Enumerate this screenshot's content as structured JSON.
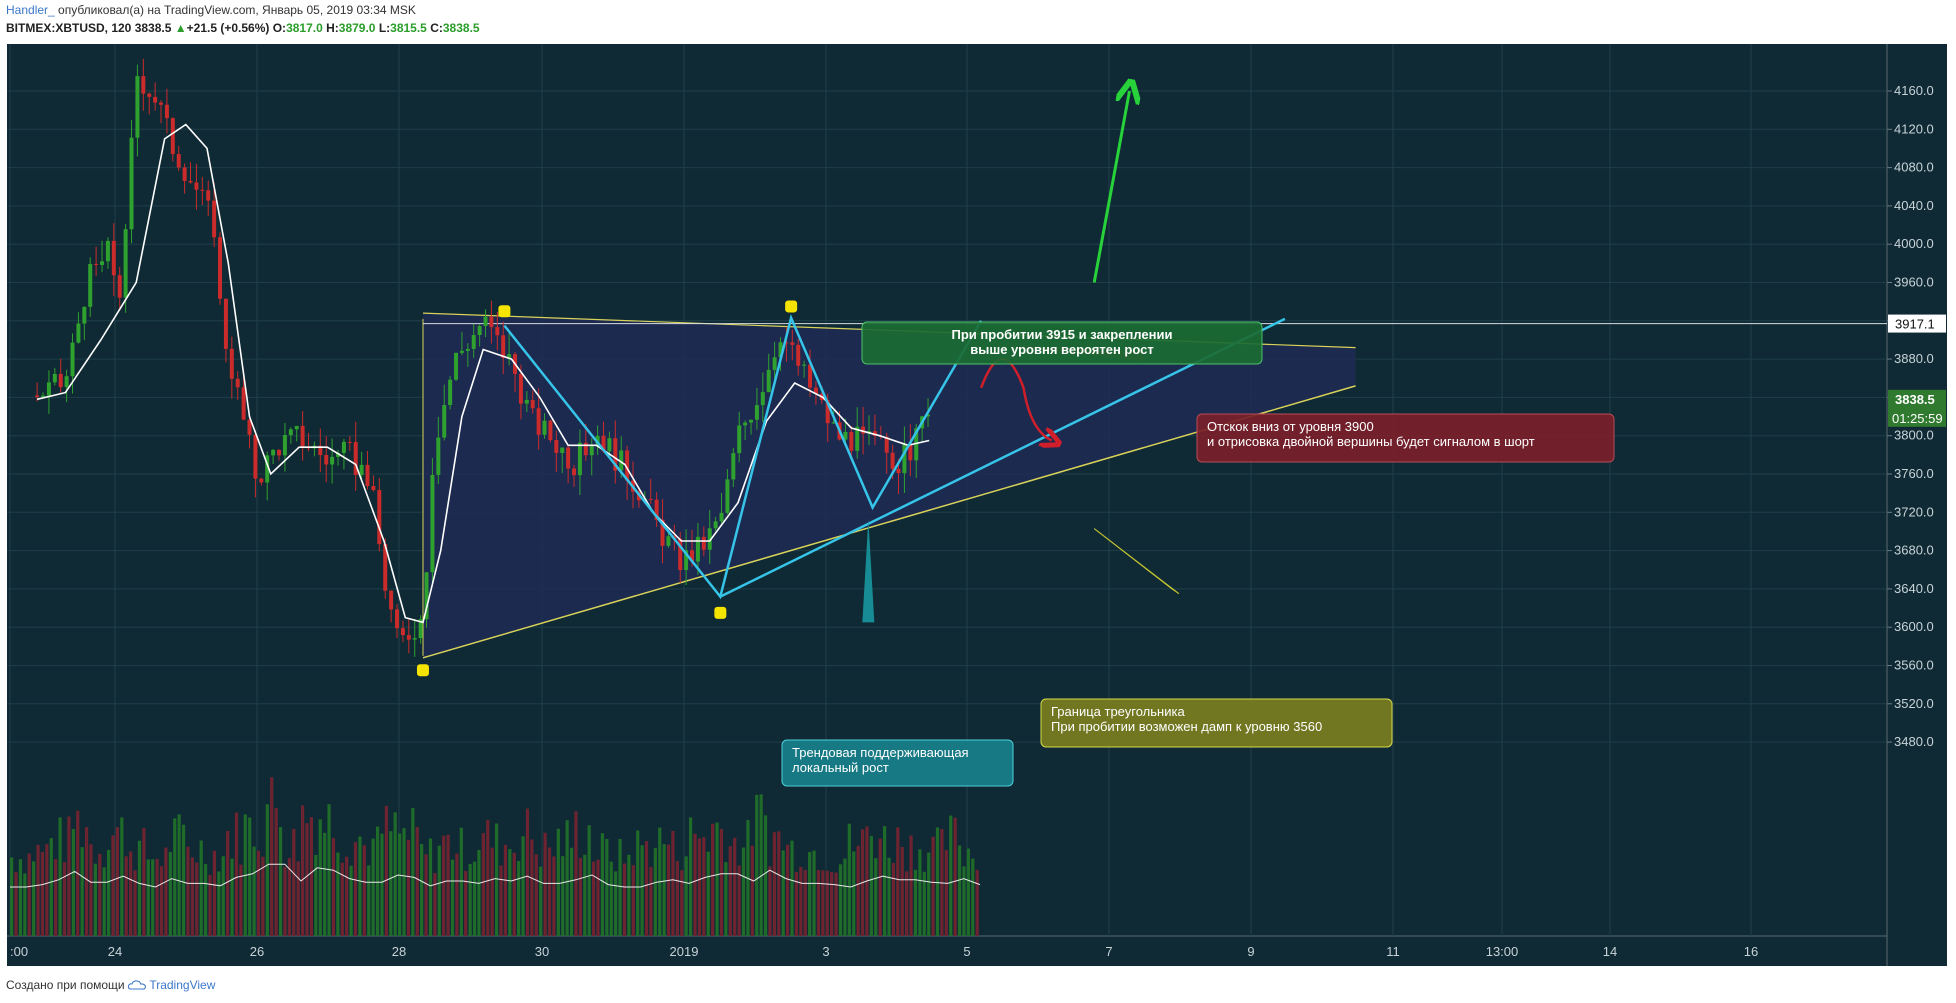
{
  "header": {
    "author": "Handler_",
    "published": " опубликовал(а) на TradingView.com, Январь 05, 2019 03:34 MSK",
    "symbol": "BITMEX:XBTUSD, 120",
    "last": "3838.5",
    "change": "+21.5 (+0.56%)",
    "o_label": "O:",
    "o_value": "3817.0",
    "h_label": "H:",
    "h_value": "3879.0",
    "l_label": "L:",
    "l_value": "3815.5",
    "c_label": "C:",
    "c_value": "3838.5"
  },
  "footer": {
    "text": "Создано при помощи",
    "brand": "TradingView"
  },
  "colors": {
    "background": "#0f2a34",
    "bull": "#2fa12f",
    "bear": "#cc2b2b",
    "ma": "#ffffff",
    "triangle_fill": "#1e2a55",
    "triangle_line": "#d9d25a",
    "cyan": "#36c4e8",
    "green_arrow": "#27d23a",
    "red_arrow": "#d01f2a",
    "price_badge": "#2f7a2f"
  },
  "chart_data": {
    "type": "candlestick",
    "symbol": "BITMEX:XBTUSD",
    "interval": "120",
    "y_ticks": [
      3480,
      3520,
      3560,
      3600,
      3640,
      3680,
      3720,
      3760,
      3800,
      3840,
      3880,
      3920,
      3960,
      4000,
      4040,
      4080,
      4120,
      4160
    ],
    "y_tick_labels": [
      "3480.0",
      "3520.0",
      "3560.0",
      "3600.0",
      "3640.0",
      "3680.0",
      "3720.0",
      "3760.0",
      "3800.0",
      "3840.0",
      "3880.0",
      "3920.0",
      "3960.0",
      "4000.0",
      "4040.0",
      "4080.0",
      "4120.0",
      "4160.0"
    ],
    "x_ticks": [
      ":00",
      "24",
      "26",
      "28",
      "30",
      "2019",
      "3",
      "5",
      "7",
      "9",
      "11",
      "13:00",
      "14",
      "16"
    ],
    "price_badges": {
      "level_line": "3917.1",
      "last_price": "3838.5",
      "countdown": "01:25:59"
    },
    "price_path": [
      [
        22.9,
        3842
      ],
      [
        23.3,
        3855
      ],
      [
        23.6,
        3960
      ],
      [
        23.9,
        3990
      ],
      [
        24.1,
        3945
      ],
      [
        24.3,
        4180
      ],
      [
        24.6,
        4150
      ],
      [
        24.8,
        4105
      ],
      [
        25.1,
        4065
      ],
      [
        25.4,
        4020
      ],
      [
        25.5,
        3920
      ],
      [
        25.8,
        3820
      ],
      [
        26.0,
        3755
      ],
      [
        26.3,
        3790
      ],
      [
        26.6,
        3800
      ],
      [
        27.0,
        3775
      ],
      [
        27.3,
        3780
      ],
      [
        27.6,
        3755
      ],
      [
        27.8,
        3650
      ],
      [
        28.0,
        3580
      ],
      [
        28.2,
        3600
      ],
      [
        28.35,
        3610
      ],
      [
        28.5,
        3790
      ],
      [
        28.8,
        3880
      ],
      [
        29.2,
        3920
      ],
      [
        29.6,
        3875
      ],
      [
        29.9,
        3815
      ],
      [
        30.2,
        3795
      ],
      [
        30.5,
        3770
      ],
      [
        30.8,
        3805
      ],
      [
        31.1,
        3775
      ],
      [
        31.4,
        3745
      ],
      [
        31.7,
        3700
      ],
      [
        32.0,
        3668
      ],
      [
        32.3,
        3685
      ],
      [
        32.55,
        3712
      ],
      [
        32.8,
        3800
      ],
      [
        33.1,
        3845
      ],
      [
        33.4,
        3910
      ],
      [
        33.6,
        3880
      ],
      [
        33.9,
        3840
      ],
      [
        34.2,
        3800
      ],
      [
        34.5,
        3795
      ],
      [
        34.8,
        3790
      ],
      [
        35.1,
        3770
      ],
      [
        35.35,
        3800
      ],
      [
        35.5,
        3838
      ]
    ],
    "moving_average": [
      [
        22.9,
        3838
      ],
      [
        23.3,
        3845
      ],
      [
        23.8,
        3900
      ],
      [
        24.3,
        3960
      ],
      [
        24.7,
        4110
      ],
      [
        25.0,
        4125
      ],
      [
        25.3,
        4100
      ],
      [
        25.6,
        3980
      ],
      [
        25.9,
        3820
      ],
      [
        26.2,
        3760
      ],
      [
        26.6,
        3788
      ],
      [
        27.0,
        3788
      ],
      [
        27.4,
        3770
      ],
      [
        27.8,
        3690
      ],
      [
        28.1,
        3610
      ],
      [
        28.35,
        3605
      ],
      [
        28.6,
        3680
      ],
      [
        28.9,
        3820
      ],
      [
        29.2,
        3890
      ],
      [
        29.6,
        3880
      ],
      [
        30.0,
        3840
      ],
      [
        30.4,
        3790
      ],
      [
        30.8,
        3790
      ],
      [
        31.2,
        3770
      ],
      [
        31.6,
        3720
      ],
      [
        32.0,
        3690
      ],
      [
        32.4,
        3690
      ],
      [
        32.8,
        3730
      ],
      [
        33.2,
        3815
      ],
      [
        33.6,
        3855
      ],
      [
        34.0,
        3840
      ],
      [
        34.4,
        3808
      ],
      [
        34.8,
        3800
      ],
      [
        35.2,
        3790
      ],
      [
        35.5,
        3795
      ]
    ],
    "volume_profile": [
      0.3,
      0.34,
      0.42,
      0.56,
      0.38,
      0.48,
      0.36,
      0.3,
      0.44,
      0.36,
      0.32,
      0.46,
      0.52,
      0.68,
      0.4,
      0.62,
      0.58,
      0.44,
      0.38,
      0.5,
      0.46,
      0.32,
      0.4,
      0.36,
      0.44,
      0.4,
      0.48,
      0.36,
      0.42,
      0.5,
      0.34,
      0.3,
      0.38,
      0.42,
      0.36,
      0.46,
      0.52,
      0.4,
      0.58,
      0.44,
      0.36,
      0.34,
      0.3,
      0.4,
      0.48,
      0.42,
      0.38,
      0.36,
      0.44,
      0.34
    ],
    "drawings": {
      "triangle": [
        [
          28.35,
          3922
        ],
        [
          36.0,
          3922
        ],
        [
          28.35,
          3570
        ]
      ],
      "upper_trendline": [
        [
          28.35,
          3928
        ],
        [
          41.0,
          3892
        ]
      ],
      "lower_trendline": [
        [
          28.35,
          3568
        ],
        [
          41.0,
          3852
        ]
      ],
      "support_line": [
        [
          32.55,
          3632
        ],
        [
          40.0,
          3922
        ]
      ],
      "zigzag": [
        [
          29.5,
          3915
        ],
        [
          32.55,
          3632
        ],
        [
          33.55,
          3923
        ],
        [
          34.7,
          3725
        ],
        [
          35.7,
          3920
        ]
      ],
      "green_arrow": [
        [
          37.3,
          3960
        ],
        [
          37.8,
          4160
        ]
      ],
      "red_arrow": [
        [
          35.7,
          3850
        ],
        [
          36.0,
          3885
        ],
        [
          36.3,
          3850
        ],
        [
          36.7,
          3795
        ]
      ],
      "markers": [
        [
          29.5,
          3930
        ],
        [
          33.55,
          3935
        ],
        [
          32.55,
          3615
        ],
        [
          28.35,
          3555
        ]
      ]
    },
    "annotations": [
      {
        "text_lines": [
          "При пробитии 3915 и закреплении",
          "выше уровня вероятен рост"
        ]
      },
      {
        "text_lines": [
          "Отскок вниз от уровня 3900",
          "и отрисовка двойной вершины будет сигналом в шорт"
        ]
      },
      {
        "text_lines": [
          "Граница треугольника",
          "При пробитии возможен дамп к уровню 3560"
        ]
      },
      {
        "text_lines": [
          "Трендовая поддерживающая",
          "локальный рост"
        ]
      }
    ]
  }
}
